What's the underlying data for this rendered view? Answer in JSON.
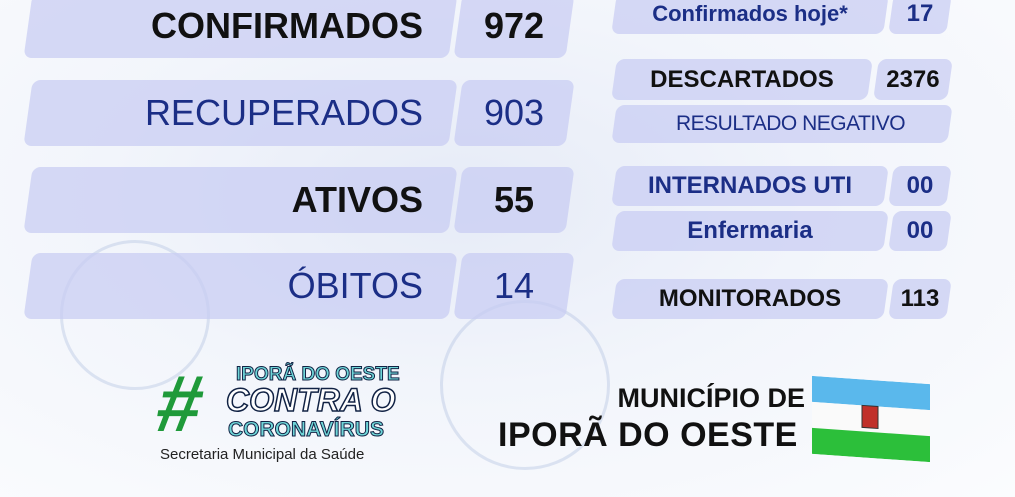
{
  "left_stats": [
    {
      "label": "CONFIRMADOS",
      "value": "972"
    },
    {
      "label": "RECUPERADOS",
      "value": "903"
    },
    {
      "label": "ATIVOS",
      "value": "55"
    },
    {
      "label": "ÓBITOS",
      "value": "14"
    }
  ],
  "right_stats": {
    "confirmados_hoje": {
      "label": "Confirmados hoje*",
      "value": "17"
    },
    "descartados": {
      "label": "DESCARTADOS",
      "value": "2376",
      "sub": "RESULTADO NEGATIVO"
    },
    "internados_uti": {
      "label": "INTERNADOS UTI",
      "value": "00"
    },
    "enfermaria": {
      "label": "Enfermaria",
      "value": "00"
    },
    "monitorados": {
      "label": "MONITORADOS",
      "value": "113"
    }
  },
  "campaign": {
    "line1": "IPORÃ DO OESTE",
    "line2": "CONTRA O",
    "line3": "CORONAVÍRUS",
    "subtitle": "Secretaria Municipal da Saúde"
  },
  "municipality": {
    "line1": "MUNICÍPIO DE",
    "line2": "IPORÃ DO OESTE"
  },
  "colors": {
    "box": "#c8ccf2",
    "navy": "#1b2e86",
    "green": "#1f9a3a",
    "teal": "#6fd6d8"
  }
}
